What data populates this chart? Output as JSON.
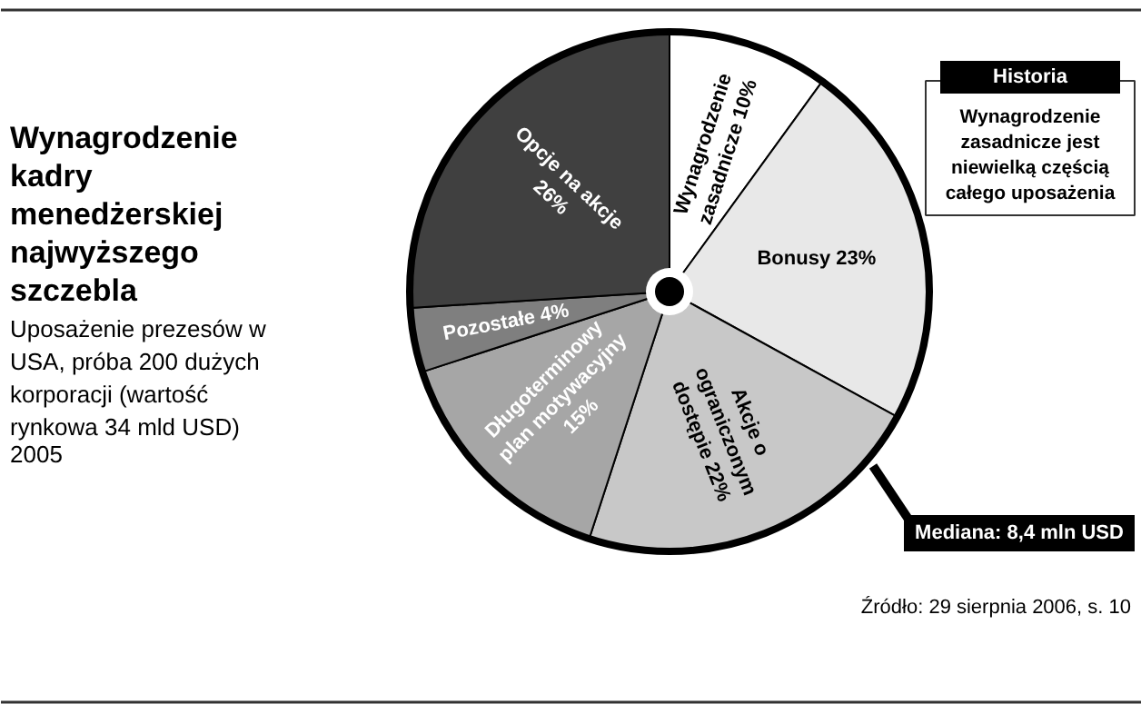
{
  "chart_data": {
    "type": "pie",
    "title": "Wynagrodzenie kadry menedżerskiej najwyższego szczebla",
    "subtitle": "Uposażenie prezesów w USA, próba 200 dużych korporacji (wartość rynkowa 34 mld USD) 2005",
    "categories": [
      "Wynagrodzenie zasadnicze",
      "Bonusy",
      "Akcje o ograniczonym dostępie",
      "Długoterminowy plan motywacyjny",
      "Pozostałe",
      "Opcje na akcje"
    ],
    "values": [
      10,
      23,
      22,
      15,
      4,
      26
    ],
    "value_labels": [
      "10%",
      "23%",
      "22%",
      "15%",
      "4%",
      "26%"
    ],
    "colors": [
      "#ffffff",
      "#e8e8e8",
      "#c8c8c8",
      "#a6a6a6",
      "#7f7f7f",
      "#404040"
    ],
    "annotations": [
      "Historia",
      "Wynagrodzenie zasadnicze jest niewielką częścią całego uposażenia",
      "Mediana: 8,4 mln USD",
      "Źródło: 29 sierpnia 2006, s. 10"
    ]
  }
}
